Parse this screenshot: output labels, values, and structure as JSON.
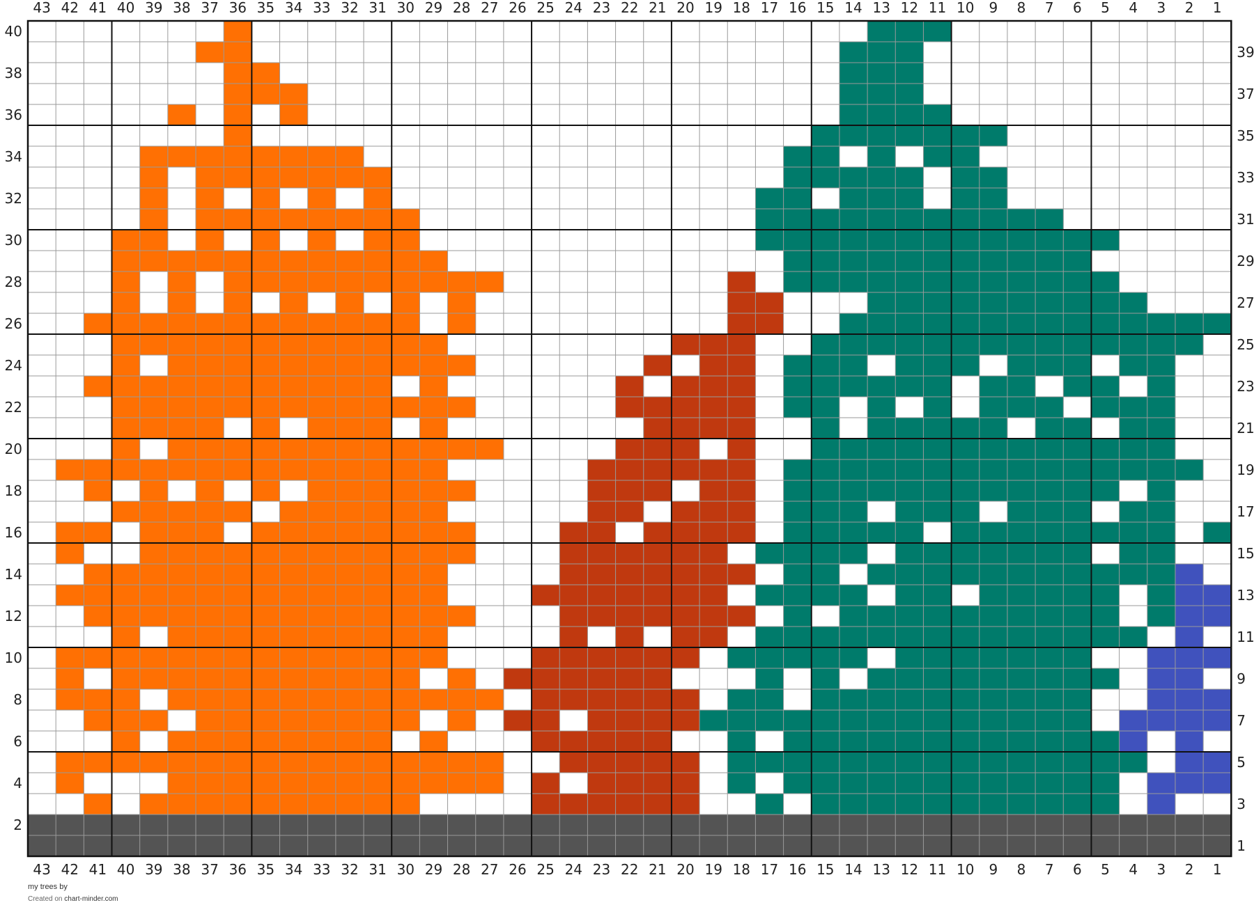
{
  "chart_data": {
    "type": "heatmap",
    "columns": 43,
    "rows": 40,
    "column_numbering": "right-to-left",
    "row_numbering": "bottom-to-top",
    "top_column_labels": [
      "43",
      "42",
      "41",
      "40",
      "39",
      "38",
      "37",
      "36",
      "35",
      "34",
      "33",
      "32",
      "31",
      "30",
      "29",
      "28",
      "27",
      "26",
      "25",
      "24",
      "23",
      "22",
      "21",
      "20",
      "19",
      "18",
      "17",
      "16",
      "15",
      "14",
      "13",
      "12",
      "11",
      "10",
      "9",
      "8",
      "7",
      "6",
      "5",
      "4",
      "3",
      "2",
      "1"
    ],
    "bottom_column_labels": [
      "43",
      "42",
      "41",
      "40",
      "39",
      "38",
      "37",
      "36",
      "35",
      "34",
      "33",
      "32",
      "31",
      "30",
      "29",
      "28",
      "27",
      "26",
      "25",
      "24",
      "23",
      "22",
      "21",
      "20",
      "19",
      "18",
      "17",
      "16",
      "15",
      "14",
      "13",
      "12",
      "11",
      "10",
      "9",
      "8",
      "7",
      "6",
      "5",
      "4",
      "3",
      "2",
      "1"
    ],
    "left_row_labels": [
      "40",
      "38",
      "36",
      "34",
      "32",
      "30",
      "28",
      "26",
      "24",
      "22",
      "20",
      "18",
      "16",
      "14",
      "12",
      "10",
      "8",
      "6",
      "4",
      "2"
    ],
    "right_row_labels": [
      "39",
      "37",
      "35",
      "33",
      "31",
      "29",
      "27",
      "25",
      "23",
      "21",
      "19",
      "17",
      "15",
      "13",
      "11",
      "9",
      "7",
      "5",
      "3",
      "1"
    ],
    "palette": {
      "o": "#ff7003",
      "r": "#c0390f",
      "g": "#007b6b",
      "b": "#4052bd",
      "k": "#545454"
    },
    "grid_lines": {
      "thin": "#9a9a9a",
      "thick": "#111111",
      "major_every": 5
    },
    "grid_rows": [
      ".......o......................ggg..........",
      "......oo.....................ggg...........",
      ".......oo....................ggg...........",
      ".......ooo...................ggg...........",
      ".....o.o.o...................gggg..........",
      ".......o....................ggggggg........",
      "....oooooooo...............gg.g.gg.........",
      "....o.ooooooo..............ggggg.gg........",
      "....o.o.o.o.o.............gg.ggg.gg........",
      "....o.oooooooo............ggggggggggg......",
      "...oo.o.o.o.oo............ggggggggggggg....",
      "...oooooooooooo............ggggggggggg.....",
      "...o.o.oooooooooo........r.gggggggggggg.....",
      "...o.o.o.o.o.o.o.........rr...gggggggggg...",
      "..oooooooooooo.o.........rr..gggggggggggggg",
      "...oooooooooooo........rrr..gggggggggggggg.",
      "...o.ooooooooooo......r.rr.ggg.ggg.ggg.gg..",
      "..ooooooooooo.o......r.rrr.gggggg.gg.gg.g..",
      "...ooooooooooooo.....rrrrr.gg.g.g.ggg.ggg..",
      "...oooo.o.ooo.o.......rrrr..g.ggggg.gg.gg..",
      "...o.oooooooooooo....rrr.r..ggggggggggggg..",
      ".oooooooooooooo.....rrrrrr.ggggggggggggggg.",
      "..o.o.o.o.oooooo....rrr.rr.gggggggggggg.g..",
      "...ooooo.oooooo.....rr.rrr.ggg.ggg.ggg.gg..",
      ".oo.ooo.oooooooo...rr.rrrr.ggggg.gggggggg.g",
      ".o..oooooooooooo...rrrrrr.gggg.ggggggg.gg..",
      "..ooooooooooooo....rrrrrrr.gg.gggggggggggb.",
      ".oooooooooooooo...rrrrrrr.gggg.gg.ggggg.gbb",
      "..oooooooooooooo...rrrrrrr.g.gggggggggg.gbb",
      "...o.oooooooooo....r.r.rr.gggggggggggggg.b.",
      ".oooooooooooooo...rrrrrr.ggggg.ggggggg..bbb",
      ".o.ooooooooooo.o.rrrrrr...g.g.ggggggggg.bb.",
      ".ooo.oooooooooooo.rrrrrr.gg.gggggggggg..bbb",
      "..ooo.oooooooo.o.rr.rrrrgggggggggggggg.bbbb",
      "...o.oooooooo.o...rrrrr..g.ggggggggggggb.b.",
      ".oooooooooooooooo..rrrrr.ggggggggggggggg.bb",
      ".o...oooooooooooo.r.rrrr.g.gggggggggggg.bbb",
      "..o.oooooooooo....rrrrrr..g.ggggggggggg.b..",
      "kkkkkkkkkkkkkkkkkkkkkkkkkkkkkkkkkkkkkkkkkkk",
      "kkkkkkkkkkkkkkkkkkkkkkkkkkkkkkkkkkkkkkkkkkk"
    ]
  },
  "footer": {
    "title": "my trees",
    "by": "by",
    "created_on": "Created on",
    "site": "chart-minder.com"
  }
}
